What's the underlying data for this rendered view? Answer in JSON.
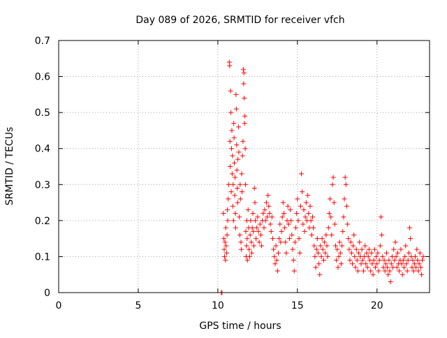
{
  "chart_data": {
    "type": "scatter",
    "title": "Day 089 of 2026, SRMTID for receiver vfch",
    "xlabel": "GPS time / hours",
    "ylabel": "SRMTID / TECUs",
    "xlim": [
      0,
      23.3
    ],
    "ylim": [
      0,
      0.7
    ],
    "x_ticks": [
      0,
      5,
      10,
      15,
      20
    ],
    "x_tick_labels": [
      "0",
      "5",
      "10",
      "15",
      "20"
    ],
    "y_ticks": [
      0,
      0.1,
      0.2,
      0.3,
      0.4,
      0.5,
      0.6,
      0.7
    ],
    "y_tick_labels": [
      "0",
      "0.1",
      "0.2",
      "0.3",
      "0.4",
      "0.5",
      "0.6",
      "0.7"
    ],
    "grid": true,
    "marker": "plus",
    "color": "#ff0000",
    "series": [
      {
        "name": "SRMTID",
        "points": [
          [
            10.22,
            0.0
          ],
          [
            10.26,
            0.0
          ],
          [
            10.35,
            0.22
          ],
          [
            10.38,
            0.15
          ],
          [
            10.4,
            0.12
          ],
          [
            10.42,
            0.1
          ],
          [
            10.45,
            0.14
          ],
          [
            10.48,
            0.09
          ],
          [
            10.5,
            0.18
          ],
          [
            10.52,
            0.13
          ],
          [
            10.55,
            0.11
          ],
          [
            10.58,
            0.16
          ],
          [
            10.6,
            0.23
          ],
          [
            10.62,
            0.2
          ],
          [
            10.65,
            0.26
          ],
          [
            10.68,
            0.3
          ],
          [
            10.72,
            0.64
          ],
          [
            10.74,
            0.63
          ],
          [
            10.76,
            0.42
          ],
          [
            10.78,
            0.35
          ],
          [
            10.8,
            0.56
          ],
          [
            10.82,
            0.5
          ],
          [
            10.84,
            0.28
          ],
          [
            10.86,
            0.4
          ],
          [
            10.88,
            0.45
          ],
          [
            10.9,
            0.33
          ],
          [
            10.92,
            0.38
          ],
          [
            10.94,
            0.24
          ],
          [
            10.96,
            0.3
          ],
          [
            10.98,
            0.2
          ],
          [
            11.0,
            0.47
          ],
          [
            11.02,
            0.43
          ],
          [
            11.04,
            0.36
          ],
          [
            11.06,
            0.27
          ],
          [
            11.08,
            0.32
          ],
          [
            11.1,
            0.22
          ],
          [
            11.12,
            0.18
          ],
          [
            11.14,
            0.55
          ],
          [
            11.16,
            0.51
          ],
          [
            11.18,
            0.41
          ],
          [
            11.2,
            0.34
          ],
          [
            11.22,
            0.29
          ],
          [
            11.24,
            0.25
          ],
          [
            11.26,
            0.37
          ],
          [
            11.3,
            0.46
          ],
          [
            11.32,
            0.39
          ],
          [
            11.35,
            0.21
          ],
          [
            11.38,
            0.16
          ],
          [
            11.4,
            0.3
          ],
          [
            11.42,
            0.26
          ],
          [
            11.45,
            0.14
          ],
          [
            11.48,
            0.12
          ],
          [
            11.5,
            0.33
          ],
          [
            11.52,
            0.28
          ],
          [
            11.55,
            0.38
          ],
          [
            11.58,
            0.42
          ],
          [
            11.6,
            0.62
          ],
          [
            11.62,
            0.58
          ],
          [
            11.64,
            0.61
          ],
          [
            11.66,
            0.54
          ],
          [
            11.68,
            0.47
          ],
          [
            11.7,
            0.49
          ],
          [
            11.72,
            0.4
          ],
          [
            11.74,
            0.3
          ],
          [
            11.76,
            0.17
          ],
          [
            11.78,
            0.1
          ],
          [
            11.8,
            0.13
          ],
          [
            11.82,
            0.2
          ],
          [
            11.84,
            0.15
          ],
          [
            11.86,
            0.09
          ],
          [
            11.9,
            0.23
          ],
          [
            11.93,
            0.18
          ],
          [
            11.96,
            0.12
          ],
          [
            12.0,
            0.1
          ],
          [
            12.03,
            0.16
          ],
          [
            12.06,
            0.2
          ],
          [
            12.1,
            0.14
          ],
          [
            12.13,
            0.11
          ],
          [
            12.16,
            0.18
          ],
          [
            12.2,
            0.22
          ],
          [
            12.23,
            0.17
          ],
          [
            12.26,
            0.13
          ],
          [
            12.3,
            0.29
          ],
          [
            12.33,
            0.25
          ],
          [
            12.36,
            0.2
          ],
          [
            12.4,
            0.15
          ],
          [
            12.45,
            0.18
          ],
          [
            12.5,
            0.21
          ],
          [
            12.55,
            0.17
          ],
          [
            12.6,
            0.14
          ],
          [
            12.65,
            0.19
          ],
          [
            12.7,
            0.16
          ],
          [
            12.75,
            0.13
          ],
          [
            12.8,
            0.2
          ],
          [
            12.85,
            0.22
          ],
          [
            12.9,
            0.18
          ],
          [
            12.95,
            0.23
          ],
          [
            13.0,
            0.2
          ],
          [
            13.05,
            0.25
          ],
          [
            13.1,
            0.21
          ],
          [
            13.15,
            0.27
          ],
          [
            13.2,
            0.24
          ],
          [
            13.25,
            0.22
          ],
          [
            13.3,
            0.19
          ],
          [
            13.35,
            0.17
          ],
          [
            13.4,
            0.21
          ],
          [
            13.45,
            0.15
          ],
          [
            13.5,
            0.12
          ],
          [
            13.55,
            0.1
          ],
          [
            13.6,
            0.08
          ],
          [
            13.65,
            0.13
          ],
          [
            13.7,
            0.09
          ],
          [
            13.75,
            0.06
          ],
          [
            13.8,
            0.11
          ],
          [
            13.85,
            0.15
          ],
          [
            13.9,
            0.19
          ],
          [
            13.95,
            0.14
          ],
          [
            14.0,
            0.17
          ],
          [
            14.05,
            0.21
          ],
          [
            14.1,
            0.25
          ],
          [
            14.15,
            0.22
          ],
          [
            14.2,
            0.18
          ],
          [
            14.25,
            0.14
          ],
          [
            14.3,
            0.11
          ],
          [
            14.35,
            0.2
          ],
          [
            14.4,
            0.24
          ],
          [
            14.45,
            0.19
          ],
          [
            14.5,
            0.15
          ],
          [
            14.55,
            0.23
          ],
          [
            14.6,
            0.2
          ],
          [
            14.65,
            0.16
          ],
          [
            14.7,
            0.12
          ],
          [
            14.75,
            0.09
          ],
          [
            14.8,
            0.06
          ],
          [
            14.85,
            0.14
          ],
          [
            14.9,
            0.18
          ],
          [
            14.95,
            0.22
          ],
          [
            15.0,
            0.26
          ],
          [
            15.05,
            0.2
          ],
          [
            15.1,
            0.15
          ],
          [
            15.15,
            0.11
          ],
          [
            15.2,
            0.24
          ],
          [
            15.25,
            0.33
          ],
          [
            15.3,
            0.28
          ],
          [
            15.35,
            0.19
          ],
          [
            15.4,
            0.23
          ],
          [
            15.45,
            0.17
          ],
          [
            15.5,
            0.21
          ],
          [
            15.55,
            0.25
          ],
          [
            15.6,
            0.2
          ],
          [
            15.65,
            0.27
          ],
          [
            15.7,
            0.22
          ],
          [
            15.75,
            0.18
          ],
          [
            15.8,
            0.24
          ],
          [
            15.85,
            0.2
          ],
          [
            15.9,
            0.16
          ],
          [
            15.95,
            0.21
          ],
          [
            16.0,
            0.18
          ],
          [
            16.05,
            0.13
          ],
          [
            16.1,
            0.1
          ],
          [
            16.15,
            0.07
          ],
          [
            16.2,
            0.12
          ],
          [
            16.25,
            0.15
          ],
          [
            16.3,
            0.11
          ],
          [
            16.35,
            0.08
          ],
          [
            16.4,
            0.05
          ],
          [
            16.45,
            0.13
          ],
          [
            16.5,
            0.1
          ],
          [
            16.55,
            0.15
          ],
          [
            16.6,
            0.12
          ],
          [
            16.65,
            0.09
          ],
          [
            16.7,
            0.14
          ],
          [
            16.75,
            0.11
          ],
          [
            16.8,
            0.16
          ],
          [
            16.85,
            0.13
          ],
          [
            16.9,
            0.1
          ],
          [
            16.95,
            0.18
          ],
          [
            17.0,
            0.22
          ],
          [
            17.05,
            0.26
          ],
          [
            17.1,
            0.21
          ],
          [
            17.15,
            0.16
          ],
          [
            17.2,
            0.3
          ],
          [
            17.25,
            0.32
          ],
          [
            17.3,
            0.25
          ],
          [
            17.35,
            0.19
          ],
          [
            17.4,
            0.13
          ],
          [
            17.45,
            0.09
          ],
          [
            17.5,
            0.12
          ],
          [
            17.55,
            0.07
          ],
          [
            17.6,
            0.1
          ],
          [
            17.65,
            0.14
          ],
          [
            17.7,
            0.11
          ],
          [
            17.75,
            0.08
          ],
          [
            17.8,
            0.13
          ],
          [
            17.85,
            0.17
          ],
          [
            17.9,
            0.21
          ],
          [
            17.95,
            0.26
          ],
          [
            18.0,
            0.32
          ],
          [
            18.05,
            0.3
          ],
          [
            18.1,
            0.24
          ],
          [
            18.15,
            0.19
          ],
          [
            18.2,
            0.15
          ],
          [
            18.25,
            0.12
          ],
          [
            18.3,
            0.09
          ],
          [
            18.35,
            0.14
          ],
          [
            18.4,
            0.11
          ],
          [
            18.45,
            0.08
          ],
          [
            18.5,
            0.13
          ],
          [
            18.55,
            0.16
          ],
          [
            18.6,
            0.1
          ],
          [
            18.65,
            0.07
          ],
          [
            18.7,
            0.12
          ],
          [
            18.75,
            0.09
          ],
          [
            18.8,
            0.06
          ],
          [
            18.85,
            0.11
          ],
          [
            18.9,
            0.14
          ],
          [
            18.95,
            0.1
          ],
          [
            19.0,
            0.08
          ],
          [
            19.05,
            0.12
          ],
          [
            19.1,
            0.09
          ],
          [
            19.15,
            0.06
          ],
          [
            19.2,
            0.1
          ],
          [
            19.25,
            0.13
          ],
          [
            19.3,
            0.08
          ],
          [
            19.35,
            0.11
          ],
          [
            19.4,
            0.07
          ],
          [
            19.45,
            0.1
          ],
          [
            19.5,
            0.12
          ],
          [
            19.55,
            0.09
          ],
          [
            19.6,
            0.06
          ],
          [
            19.65,
            0.11
          ],
          [
            19.7,
            0.08
          ],
          [
            19.75,
            0.05
          ],
          [
            19.8,
            0.09
          ],
          [
            19.85,
            0.12
          ],
          [
            19.9,
            0.07
          ],
          [
            19.95,
            0.1
          ],
          [
            20.0,
            0.08
          ],
          [
            20.05,
            0.11
          ],
          [
            20.1,
            0.06
          ],
          [
            20.15,
            0.09
          ],
          [
            20.2,
            0.13
          ],
          [
            20.25,
            0.21
          ],
          [
            20.3,
            0.16
          ],
          [
            20.35,
            0.1
          ],
          [
            20.4,
            0.07
          ],
          [
            20.45,
            0.09
          ],
          [
            20.5,
            0.06
          ],
          [
            20.55,
            0.08
          ],
          [
            20.6,
            0.11
          ],
          [
            20.65,
            0.07
          ],
          [
            20.7,
            0.05
          ],
          [
            20.75,
            0.09
          ],
          [
            20.8,
            0.06
          ],
          [
            20.85,
            0.03
          ],
          [
            20.9,
            0.08
          ],
          [
            20.95,
            0.1
          ],
          [
            21.0,
            0.07
          ],
          [
            21.05,
            0.12
          ],
          [
            21.1,
            0.09
          ],
          [
            21.15,
            0.14
          ],
          [
            21.2,
            0.1
          ],
          [
            21.25,
            0.07
          ],
          [
            21.3,
            0.11
          ],
          [
            21.35,
            0.08
          ],
          [
            21.4,
            0.06
          ],
          [
            21.45,
            0.09
          ],
          [
            21.5,
            0.12
          ],
          [
            21.55,
            0.08
          ],
          [
            21.6,
            0.05
          ],
          [
            21.65,
            0.09
          ],
          [
            21.7,
            0.07
          ],
          [
            21.75,
            0.1
          ],
          [
            21.8,
            0.13
          ],
          [
            21.85,
            0.08
          ],
          [
            21.9,
            0.06
          ],
          [
            21.95,
            0.09
          ],
          [
            22.0,
            0.11
          ],
          [
            22.05,
            0.18
          ],
          [
            22.1,
            0.15
          ],
          [
            22.15,
            0.1
          ],
          [
            22.2,
            0.07
          ],
          [
            22.25,
            0.09
          ],
          [
            22.3,
            0.06
          ],
          [
            22.35,
            0.08
          ],
          [
            22.4,
            0.1
          ],
          [
            22.45,
            0.07
          ],
          [
            22.5,
            0.12
          ],
          [
            22.55,
            0.09
          ],
          [
            22.6,
            0.06
          ],
          [
            22.65,
            0.08
          ],
          [
            22.7,
            0.11
          ],
          [
            22.75,
            0.07
          ],
          [
            22.8,
            0.05
          ],
          [
            22.85,
            0.09
          ],
          [
            22.9,
            0.1
          ]
        ]
      }
    ]
  }
}
